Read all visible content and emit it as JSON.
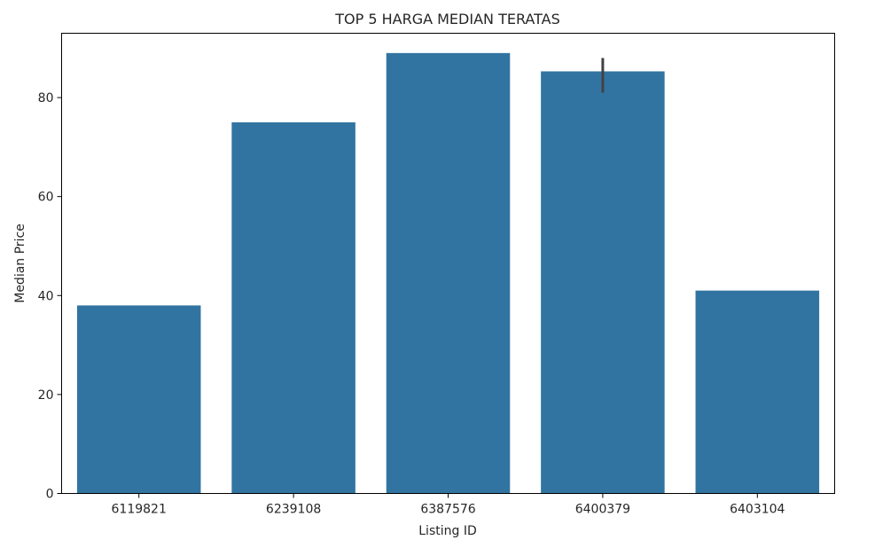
{
  "chart_data": {
    "type": "bar",
    "title": "TOP 5 HARGA MEDIAN TERATAS",
    "xlabel": "Listing ID",
    "ylabel": "Median Price",
    "categories": [
      "6119821",
      "6239108",
      "6387576",
      "6400379",
      "6403104"
    ],
    "values": [
      38,
      75,
      89,
      85.3,
      41
    ],
    "error_bars": [
      null,
      null,
      null,
      [
        81,
        88
      ],
      null
    ],
    "ylim": [
      0,
      93
    ],
    "yticks": [
      0,
      20,
      40,
      60,
      80
    ],
    "grid": false,
    "legend": "none",
    "bar_color": "#3274a1",
    "error_color": "#424242"
  }
}
